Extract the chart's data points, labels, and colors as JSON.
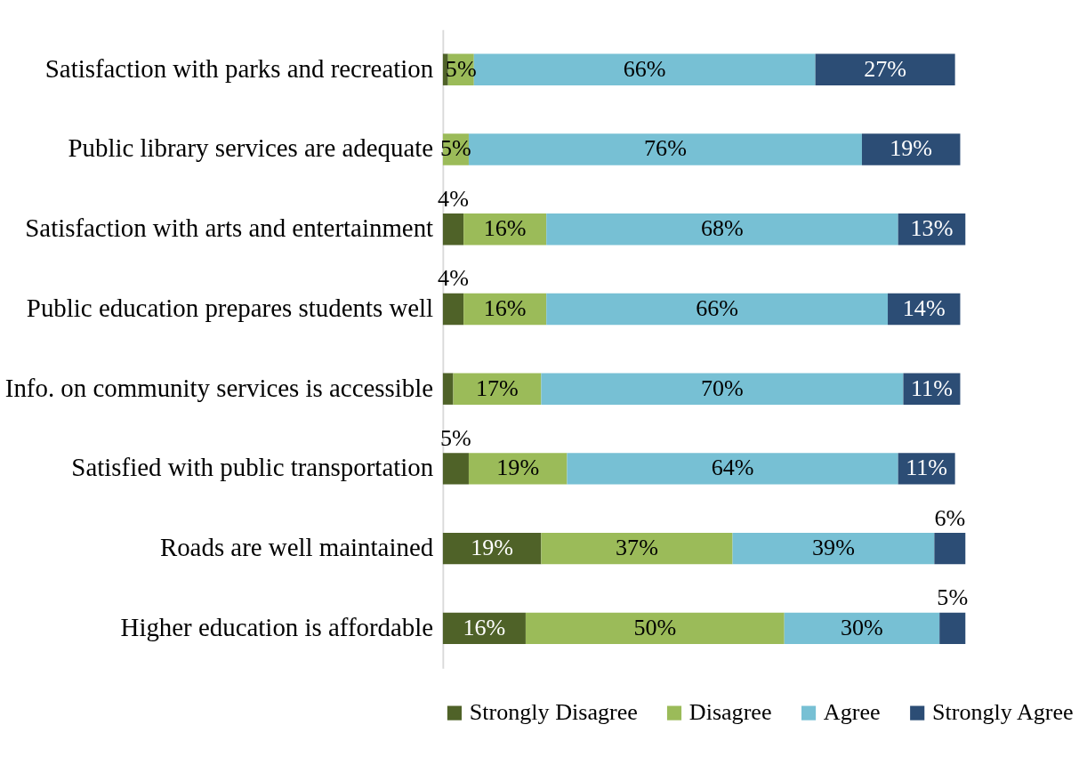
{
  "chart_data": {
    "type": "bar",
    "orientation": "horizontal",
    "stacked": true,
    "legend": "bottom",
    "tick_labels": "y",
    "categories": [
      "Satisfaction with parks and recreation",
      "Public library services are adequate",
      "Satisfaction with arts and entertainment ",
      "Public education prepares students well",
      "Info. on community services is accessible",
      "Satisfied with public transportation",
      "Roads are well maintained",
      "Higher education is affordable"
    ],
    "series": [
      {
        "name": "Strongly Disagree",
        "color": "#4f6228",
        "values": [
          1,
          null,
          4,
          4,
          2,
          5,
          19,
          16
        ],
        "value_labels": [
          null,
          null,
          "4%",
          "4%",
          null,
          "5%",
          "19%",
          "16%"
        ]
      },
      {
        "name": "Disagree",
        "color": "#9bbb59",
        "values": [
          5,
          5,
          16,
          16,
          17,
          19,
          37,
          50
        ],
        "value_labels": [
          "5%",
          "5%",
          "16%",
          "16%",
          "17%",
          "19%",
          "37%",
          "50%"
        ]
      },
      {
        "name": "Agree",
        "color": "#77c0d4",
        "values": [
          66,
          76,
          68,
          66,
          70,
          64,
          39,
          30
        ],
        "value_labels": [
          "66%",
          "76%",
          "68%",
          "66%",
          "70%",
          "64%",
          "39%",
          "30%"
        ]
      },
      {
        "name": "Strongly Agree",
        "color": "#2c4d75",
        "values": [
          27,
          19,
          13,
          14,
          11,
          11,
          6,
          5
        ],
        "value_labels": [
          "27%",
          "19%",
          "13%",
          "14%",
          "11%",
          "11%",
          "6%",
          "5%"
        ]
      }
    ]
  }
}
